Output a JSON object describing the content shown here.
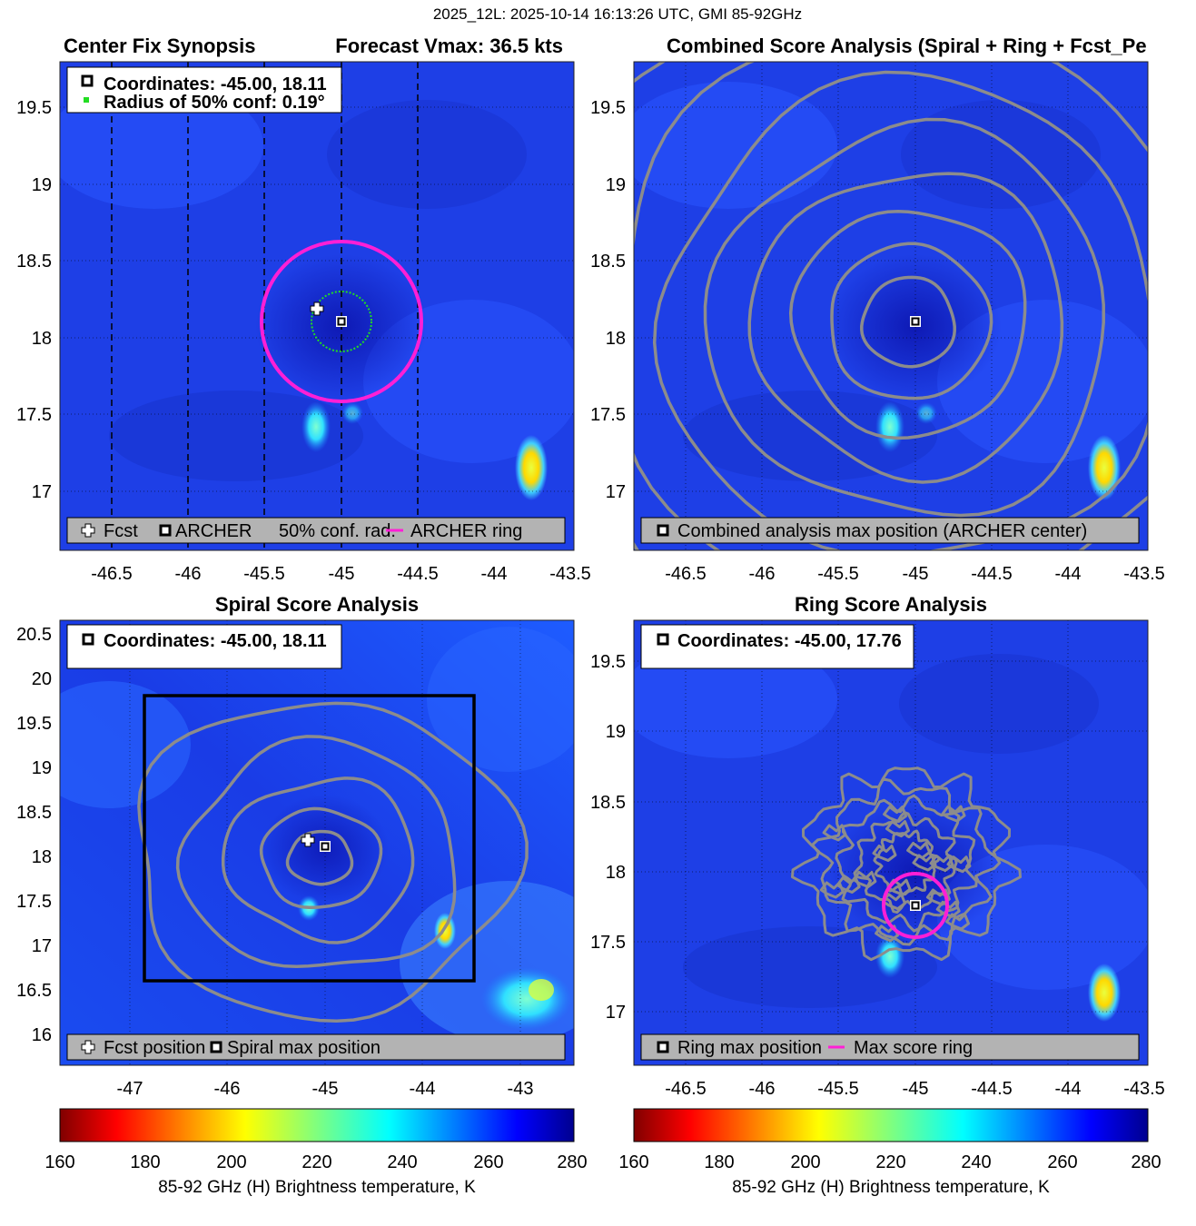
{
  "suptitle": "2025_12L: 2025-10-14 16:13:26 UTC, GMI 85-92GHz",
  "colors": {
    "magenta": "#ff1fd6",
    "green": "#22dd22",
    "contour": "#8c8c8c",
    "legend_bg": "#b3b3b3"
  },
  "panels": [
    {
      "id": "synopsis",
      "title_left": "Center Fix Synopsis",
      "title_right": "Forecast Vmax: 36.5 kts",
      "xticks": [
        "-46.5",
        "-46",
        "-45.5",
        "-45",
        "-44.5",
        "-44",
        "-43.5"
      ],
      "yticks": [
        "19.5",
        "19",
        "18.5",
        "18",
        "17.5",
        "17"
      ],
      "info_lines": [
        "Coordinates: -45.00, 18.11",
        "Radius of 50% conf: 0.19°"
      ],
      "legend": [
        "Fcst",
        "ARCHER",
        "50% conf. rad.",
        "ARCHER ring"
      ]
    },
    {
      "id": "combined",
      "title": "Combined Score Analysis (Spiral + Ring + Fcst_Pe",
      "xticks": [
        "-46.5",
        "-46",
        "-45.5",
        "-45",
        "-44.5",
        "-44",
        "-43.5"
      ],
      "yticks": [
        "19.5",
        "19",
        "18.5",
        "18",
        "17.5",
        "17"
      ],
      "legend": [
        "Combined analysis max position (ARCHER center)"
      ]
    },
    {
      "id": "spiral",
      "title": "Spiral Score Analysis",
      "xticks": [
        "-47",
        "-46",
        "-45",
        "-44",
        "-43"
      ],
      "yticks": [
        "20.5",
        "20",
        "19.5",
        "19",
        "18.5",
        "18",
        "17.5",
        "17",
        "16.5",
        "16"
      ],
      "info_lines": [
        "Coordinates: -45.00, 18.11"
      ],
      "legend": [
        "Fcst position",
        "Spiral max position"
      ]
    },
    {
      "id": "ring",
      "title": "Ring Score Analysis",
      "xticks": [
        "-46.5",
        "-46",
        "-45.5",
        "-45",
        "-44.5",
        "-44",
        "-43.5"
      ],
      "yticks": [
        "19.5",
        "19",
        "18.5",
        "18",
        "17.5",
        "17"
      ],
      "info_lines": [
        "Coordinates: -45.00, 17.76"
      ],
      "legend": [
        "Ring max position",
        "Max score ring"
      ]
    }
  ],
  "colorbars": [
    {
      "ticks": [
        "160",
        "180",
        "200",
        "220",
        "240",
        "260",
        "280"
      ],
      "label": "85-92 GHz (H) Brightness temperature, K"
    },
    {
      "ticks": [
        "160",
        "180",
        "200",
        "220",
        "240",
        "260",
        "280"
      ],
      "label": "85-92 GHz (H) Brightness temperature, K"
    }
  ],
  "chart_data": [
    {
      "type": "heatmap",
      "title": "Center Fix Synopsis",
      "subtitle": "Forecast Vmax: 36.5 kts",
      "x_range": [
        -46.85,
        -43.5
      ],
      "y_range": [
        16.6,
        19.8
      ],
      "archer_center": {
        "lon": -45.0,
        "lat": 18.11
      },
      "forecast_position": {
        "lon": -45.16,
        "lat": 18.2
      },
      "conf_radius_deg": 0.19,
      "archer_ring_radius_deg": 0.5,
      "color_scale": "jet_r",
      "clim": [
        160,
        280
      ],
      "warm_spots": [
        {
          "lon": -45.17,
          "lat": 17.42,
          "tb": 230
        },
        {
          "lon": -43.8,
          "lat": 17.15,
          "tb": 200
        }
      ]
    },
    {
      "type": "heatmap",
      "title": "Combined Score Analysis (Spiral + Ring + Fcst_Pe",
      "x_range": [
        -46.85,
        -43.5
      ],
      "y_range": [
        16.6,
        19.8
      ],
      "max_position": {
        "lon": -45.0,
        "lat": 18.11
      },
      "contour_radii_deg": [
        0.3,
        0.52,
        0.76,
        1.02,
        1.3,
        1.62,
        1.98,
        2.4
      ],
      "clim": [
        160,
        280
      ]
    },
    {
      "type": "heatmap",
      "title": "Spiral Score Analysis",
      "x_range": [
        -47.8,
        -42.5
      ],
      "y_range": [
        15.6,
        20.6
      ],
      "spiral_max_position": {
        "lon": -45.0,
        "lat": 18.11
      },
      "forecast_position": {
        "lon": -45.16,
        "lat": 18.2
      },
      "search_box": {
        "lon": [
          -46.85,
          -43.45
        ],
        "lat": [
          16.6,
          19.8
        ]
      },
      "contour_radii_deg": [
        0.3,
        0.56,
        0.9,
        1.3,
        1.8
      ],
      "clim": [
        160,
        280
      ]
    },
    {
      "type": "heatmap",
      "title": "Ring Score Analysis",
      "x_range": [
        -46.85,
        -43.5
      ],
      "y_range": [
        16.6,
        19.8
      ],
      "ring_max_position": {
        "lon": -45.0,
        "lat": 17.76
      },
      "max_score_ring_radius_deg": 0.22,
      "clim": [
        160,
        280
      ]
    }
  ]
}
